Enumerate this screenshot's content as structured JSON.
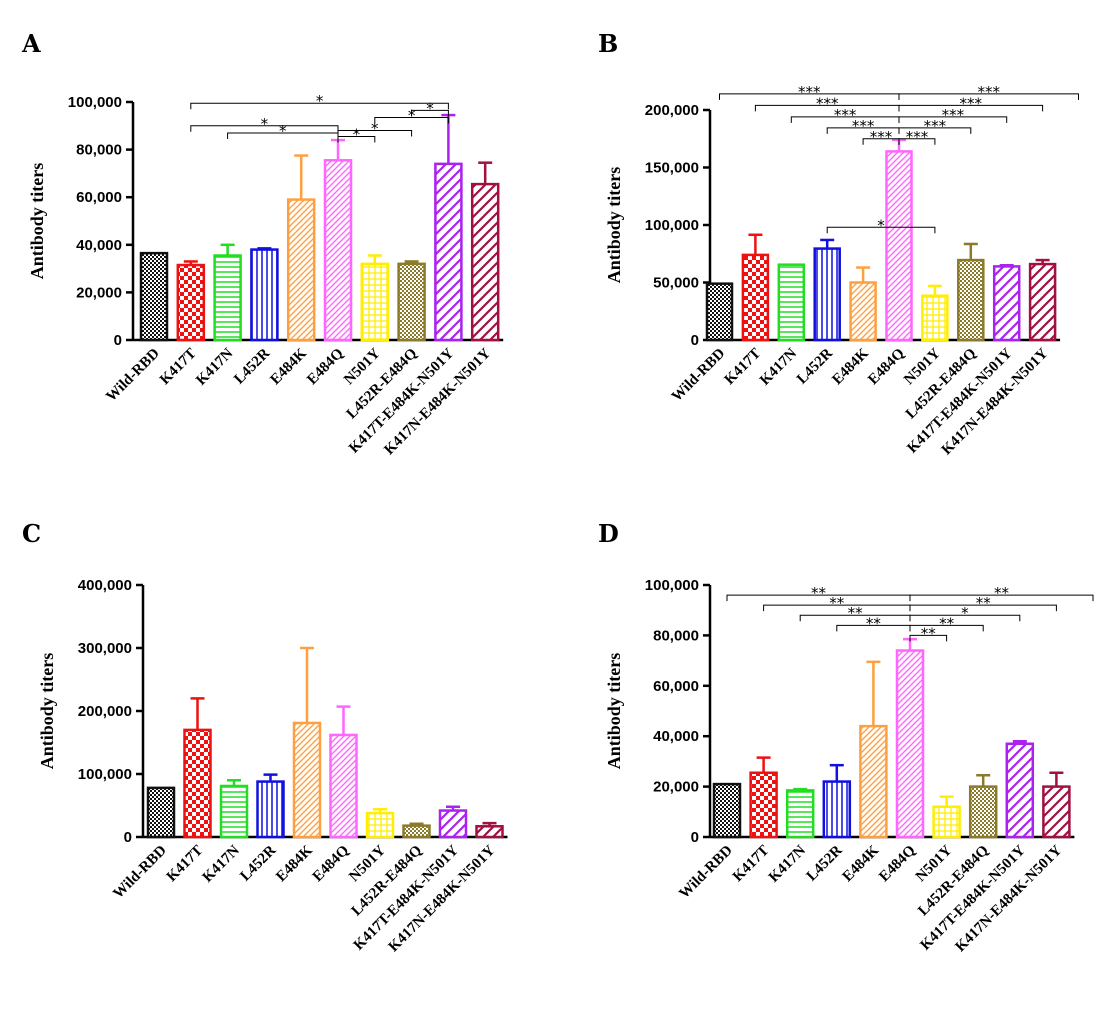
{
  "chart_data": [
    {
      "panel": "A",
      "type": "bar",
      "ylabel": "Antibody titers",
      "ylim": [
        0,
        100000
      ],
      "yticks": [
        0,
        20000,
        40000,
        60000,
        80000,
        100000
      ],
      "ytick_labels": [
        "0",
        "20,000",
        "40,000",
        "60,000",
        "80,000",
        "100,000"
      ],
      "categories": [
        "Wild-RBD",
        "K417T",
        "K417N",
        "L452R",
        "E484K",
        "E484Q",
        "N501Y",
        "L452R-E484Q",
        "K417T-E484K-N501Y",
        "K417N-E484K-N501Y"
      ],
      "values": [
        36500,
        31500,
        35500,
        38000,
        59000,
        75500,
        32000,
        32000,
        74000,
        65500
      ],
      "errors": [
        0,
        1500,
        4500,
        500,
        18500,
        8500,
        3500,
        1000,
        20500,
        9000
      ],
      "significance": [
        {
          "from": 1,
          "to": 5,
          "label": "*",
          "y": 90000
        },
        {
          "from": 2,
          "to": 5,
          "label": "*",
          "y": 87000
        },
        {
          "from": 5,
          "to": 6,
          "label": "*",
          "y": 85500
        },
        {
          "from": 5,
          "to": 7,
          "label": "*",
          "y": 88000
        },
        {
          "from": 6,
          "to": 8,
          "label": "*",
          "y": 93500
        },
        {
          "from": 7,
          "to": 8,
          "label": "*",
          "y": 96500
        },
        {
          "from": 1,
          "to": 8,
          "label": "*",
          "y": 99500
        }
      ]
    },
    {
      "panel": "B",
      "type": "bar",
      "ylabel": "Antibody titers",
      "ylim": [
        0,
        200000
      ],
      "yticks": [
        0,
        50000,
        100000,
        150000,
        200000
      ],
      "ytick_labels": [
        "0",
        "50,000",
        "100,000",
        "150,000",
        "200,000"
      ],
      "categories": [
        "Wild-RBD",
        "K417T",
        "K417N",
        "L452R",
        "E484K",
        "E484Q",
        "N501Y",
        "L452R-E484Q",
        "K417T-E484K-N501Y",
        "K417N-E484K-N501Y"
      ],
      "values": [
        49000,
        74000,
        65500,
        79500,
        50000,
        164000,
        38500,
        69500,
        64000,
        66000
      ],
      "errors": [
        0,
        17500,
        0,
        7500,
        13000,
        10000,
        8500,
        14000,
        1000,
        3500
      ],
      "significance": [
        {
          "from": 0,
          "to": 5,
          "label": "***",
          "y": 214000
        },
        {
          "from": 1,
          "to": 5,
          "label": "***",
          "y": 204000
        },
        {
          "from": 2,
          "to": 5,
          "label": "***",
          "y": 194000
        },
        {
          "from": 3,
          "to": 5,
          "label": "***",
          "y": 184500
        },
        {
          "from": 4,
          "to": 5,
          "label": "***",
          "y": 175000
        },
        {
          "from": 5,
          "to": 6,
          "label": "***",
          "y": 175000
        },
        {
          "from": 5,
          "to": 7,
          "label": "***",
          "y": 184500
        },
        {
          "from": 5,
          "to": 8,
          "label": "***",
          "y": 194000
        },
        {
          "from": 5,
          "to": 9,
          "label": "***",
          "y": 204000
        },
        {
          "from": 5,
          "to": 10,
          "label": "***",
          "y": 214000
        },
        {
          "from": 3,
          "to": 6,
          "label": "*",
          "y": 98000
        }
      ]
    },
    {
      "panel": "C",
      "type": "bar",
      "ylabel": "Antibody titers",
      "ylim": [
        0,
        400000
      ],
      "yticks": [
        0,
        100000,
        200000,
        300000,
        400000
      ],
      "ytick_labels": [
        "0",
        "100,000",
        "200,000",
        "300,000",
        "400,000"
      ],
      "categories": [
        "Wild-RBD",
        "K417T",
        "K417N",
        "L452R",
        "E484K",
        "E484Q",
        "N501Y",
        "L452R-E484Q",
        "K417T-E484K-N501Y",
        "K417N-E484K-N501Y"
      ],
      "values": [
        78000,
        170000,
        81000,
        88000,
        181000,
        162000,
        38000,
        18000,
        42000,
        17000
      ],
      "errors": [
        0,
        50000,
        9000,
        11000,
        119000,
        45000,
        6000,
        3000,
        6000,
        5000
      ],
      "significance": []
    },
    {
      "panel": "D",
      "type": "bar",
      "ylabel": "Antibody titers",
      "ylim": [
        0,
        100000
      ],
      "yticks": [
        0,
        20000,
        40000,
        60000,
        80000,
        100000
      ],
      "ytick_labels": [
        "0",
        "20,000",
        "40,000",
        "60,000",
        "80,000",
        "100,000"
      ],
      "categories": [
        "Wild-RBD",
        "K417T",
        "K417N",
        "L452R",
        "E484K",
        "E484Q",
        "N501Y",
        "L452R-E484Q",
        "K417T-E484K-N501Y",
        "K417N-E484K-N501Y"
      ],
      "values": [
        21000,
        25500,
        18500,
        22000,
        44000,
        74000,
        12000,
        20000,
        37000,
        20000
      ],
      "errors": [
        0,
        6000,
        500,
        6500,
        25500,
        4500,
        4000,
        4500,
        1000,
        5500
      ],
      "significance": [
        {
          "from": 0,
          "to": 5,
          "label": "**",
          "y": 96000
        },
        {
          "from": 1,
          "to": 5,
          "label": "**",
          "y": 92000
        },
        {
          "from": 2,
          "to": 5,
          "label": "**",
          "y": 88000
        },
        {
          "from": 3,
          "to": 5,
          "label": "**",
          "y": 84000
        },
        {
          "from": 5,
          "to": 6,
          "label": "**",
          "y": 80000
        },
        {
          "from": 5,
          "to": 7,
          "label": "**",
          "y": 84000
        },
        {
          "from": 5,
          "to": 8,
          "label": "*",
          "y": 88000
        },
        {
          "from": 5,
          "to": 9,
          "label": "**",
          "y": 92000
        },
        {
          "from": 5,
          "to": 10,
          "label": "**",
          "y": 96000
        }
      ]
    }
  ],
  "series_colors": [
    "#111111",
    "#ee1111",
    "#22dd22",
    "#1111dd",
    "#ffa040",
    "#ff66ff",
    "#ffee00",
    "#8b7a2a",
    "#aa22ee",
    "#a01040"
  ],
  "series_patterns": [
    "checker",
    "checker-lg",
    "hlines",
    "vlines",
    "diag-fine",
    "diag-fine",
    "grid",
    "dots",
    "diag-wide",
    "diag-wide"
  ]
}
